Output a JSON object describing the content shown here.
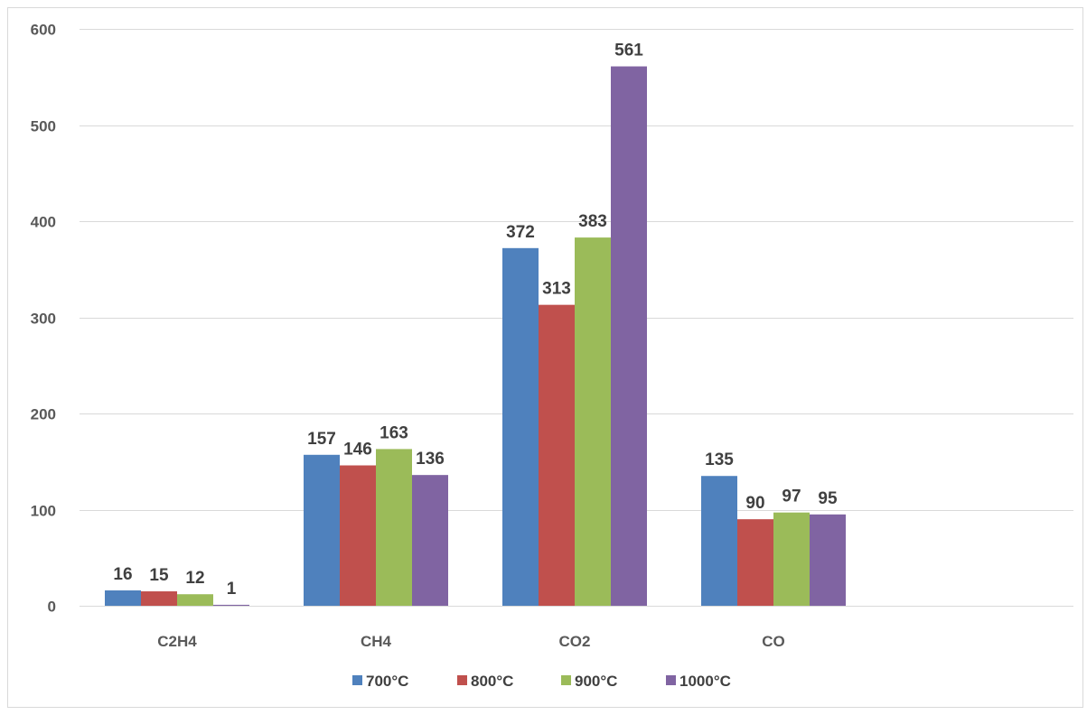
{
  "chart_data": {
    "type": "bar",
    "categories": [
      "C2H4",
      "CH4",
      "CO2",
      "CO"
    ],
    "series": [
      {
        "name": "700°C",
        "color": "#4F81BD",
        "values": [
          16,
          157,
          372,
          135
        ]
      },
      {
        "name": "800°C",
        "color": "#C0504D",
        "values": [
          15,
          146,
          313,
          90
        ]
      },
      {
        "name": "900°C",
        "color": "#9BBB59",
        "values": [
          12,
          163,
          383,
          97
        ]
      },
      {
        "name": "1000°C",
        "color": "#8064A2",
        "values": [
          1,
          136,
          561,
          95
        ]
      }
    ],
    "yticks": [
      "0",
      "100",
      "200",
      "300",
      "400",
      "500",
      "600"
    ],
    "ylim": [
      0,
      600
    ],
    "grid": true,
    "legend": "bottom",
    "gridColor": "#D9D9D9"
  }
}
